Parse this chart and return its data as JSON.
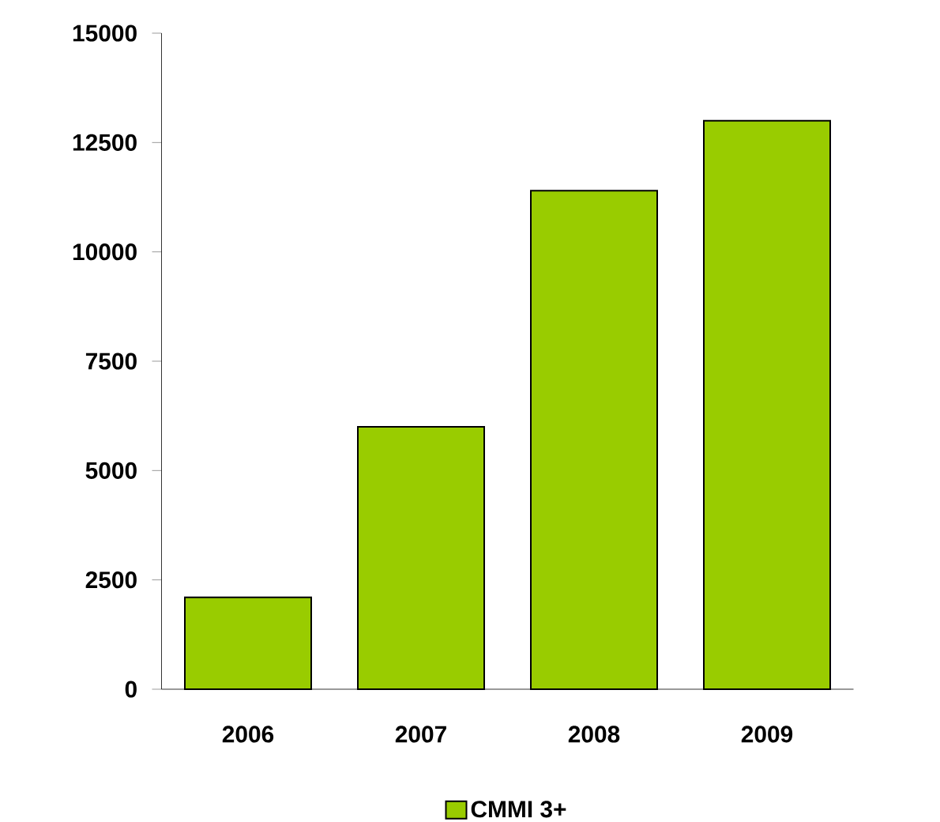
{
  "chart_data": {
    "type": "bar",
    "categories": [
      "2006",
      "2007",
      "2008",
      "2009"
    ],
    "series": [
      {
        "name": "CMMI 3+",
        "color": "#99cc00",
        "values": [
          2100,
          6000,
          11400,
          13000
        ]
      }
    ],
    "ylim": [
      0,
      15000
    ],
    "yticks": [
      0,
      2500,
      5000,
      7500,
      10000,
      12500,
      15000
    ],
    "grid": false,
    "legend": "bottom"
  }
}
